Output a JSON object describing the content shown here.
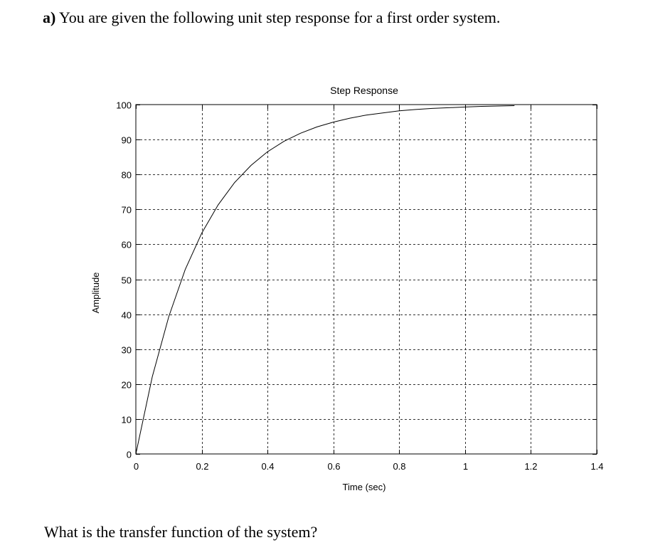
{
  "question": {
    "label": "a)",
    "text": "You are given the following unit step response for a first order system."
  },
  "footer_text": "What is the transfer function of the system?",
  "chart_data": {
    "type": "line",
    "title": "Step Response",
    "xlabel": "Time (sec)",
    "ylabel": "Amplitude",
    "xlim": [
      0,
      1.4
    ],
    "ylim": [
      0,
      100
    ],
    "x_ticks": [
      "0",
      "0.2",
      "0.4",
      "0.6",
      "0.8",
      "1",
      "1.2",
      "1.4"
    ],
    "y_ticks": [
      "0",
      "10",
      "20",
      "30",
      "40",
      "50",
      "60",
      "70",
      "80",
      "90",
      "100"
    ],
    "grid": true,
    "series": [
      {
        "x": [
          0,
          0.05,
          0.1,
          0.15,
          0.2,
          0.25,
          0.3,
          0.35,
          0.4,
          0.45,
          0.5,
          0.55,
          0.6,
          0.65,
          0.7,
          0.75,
          0.8,
          0.85,
          0.9,
          0.95,
          1.0,
          1.05,
          1.1,
          1.15
        ],
        "y": [
          0,
          22.1,
          39.3,
          52.8,
          63.2,
          71.3,
          77.7,
          82.6,
          86.5,
          89.5,
          91.8,
          93.6,
          95.0,
          96.1,
          97.0,
          97.6,
          98.2,
          98.6,
          98.9,
          99.1,
          99.3,
          99.5,
          99.6,
          99.7
        ]
      }
    ]
  }
}
